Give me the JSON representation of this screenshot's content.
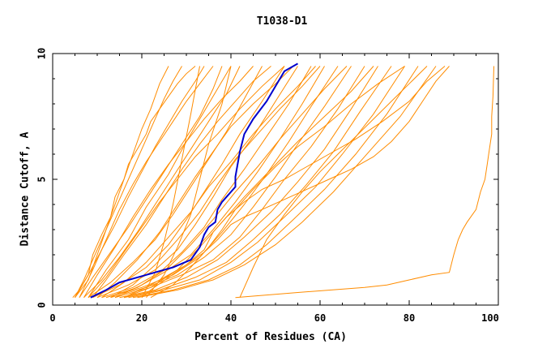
{
  "chart_data": {
    "type": "line",
    "title": "T1038-D1",
    "xlabel": "Percent of Residues (CA)",
    "ylabel": "Distance Cutoff, A",
    "xlim": [
      0,
      100
    ],
    "ylim": [
      0,
      10
    ],
    "x_ticks": [
      "0",
      "20",
      "40",
      "60",
      "80",
      "100"
    ],
    "y_ticks": [
      "0",
      "5",
      "10"
    ],
    "grid": false,
    "colors": {
      "models": "#ff8c00",
      "highlight": "#0000cd",
      "axes": "#000000"
    },
    "series": [
      {
        "x": [
          5,
          8,
          10,
          12,
          14,
          16,
          18,
          20,
          22,
          24,
          26
        ],
        "y": [
          0.3,
          1.0,
          2.0,
          3.0,
          4.0,
          5.0,
          6.0,
          7.0,
          7.8,
          8.8,
          9.5
        ]
      },
      {
        "x": [
          4.5,
          6,
          8,
          9,
          11,
          13,
          14,
          16,
          17,
          19,
          21,
          22,
          24,
          26,
          28,
          30,
          32
        ],
        "y": [
          0.3,
          0.6,
          1.2,
          2.0,
          2.8,
          3.5,
          4.3,
          5.0,
          5.6,
          6.2,
          6.8,
          7.3,
          7.8,
          8.3,
          8.8,
          9.2,
          9.5
        ]
      },
      {
        "x": [
          5,
          8,
          11,
          14,
          17,
          20,
          23,
          26,
          29,
          32,
          34
        ],
        "y": [
          0.3,
          1.2,
          2.2,
          3.2,
          4.3,
          5.3,
          6.3,
          7.2,
          8.1,
          8.9,
          9.5
        ]
      },
      {
        "x": [
          6,
          9,
          13,
          17,
          21,
          25,
          29,
          33,
          36,
          38
        ],
        "y": [
          0.3,
          1.1,
          2.1,
          3.1,
          4.2,
          5.3,
          6.4,
          7.5,
          8.6,
          9.5
        ]
      },
      {
        "x": [
          7,
          11,
          15,
          19,
          23,
          27,
          31,
          35,
          39,
          42
        ],
        "y": [
          0.3,
          1.0,
          1.9,
          2.9,
          4.0,
          5.1,
          6.2,
          7.3,
          8.4,
          9.5
        ]
      },
      {
        "x": [
          8,
          13,
          18,
          23,
          27,
          31,
          35,
          39,
          43,
          47
        ],
        "y": [
          0.3,
          0.9,
          1.7,
          2.6,
          3.6,
          4.7,
          5.8,
          6.9,
          8.2,
          9.5
        ]
      },
      {
        "x": [
          9,
          15,
          21,
          26,
          30,
          34,
          38,
          42,
          47,
          52
        ],
        "y": [
          0.3,
          0.8,
          1.5,
          2.4,
          3.4,
          4.5,
          5.6,
          6.8,
          8.1,
          9.5
        ]
      },
      {
        "x": [
          10,
          17,
          23,
          28,
          32,
          36,
          40,
          45,
          50,
          55
        ],
        "y": [
          0.3,
          0.8,
          1.4,
          2.2,
          3.2,
          4.3,
          5.5,
          6.7,
          8.1,
          9.5
        ]
      },
      {
        "x": [
          11,
          18,
          24,
          29,
          34,
          38,
          43,
          48,
          53,
          58
        ],
        "y": [
          0.3,
          0.7,
          1.3,
          2.1,
          3.1,
          4.2,
          5.4,
          6.7,
          8.0,
          9.5
        ]
      },
      {
        "x": [
          12,
          19,
          25,
          31,
          36,
          41,
          46,
          51,
          56,
          61
        ],
        "y": [
          0.3,
          0.7,
          1.3,
          2.0,
          3.0,
          4.1,
          5.3,
          6.6,
          8.0,
          9.5
        ]
      },
      {
        "x": [
          12,
          20,
          27,
          33,
          38,
          43,
          48,
          53,
          58,
          64
        ],
        "y": [
          0.3,
          0.7,
          1.2,
          1.9,
          2.9,
          4.0,
          5.2,
          6.5,
          7.9,
          9.5
        ]
      },
      {
        "x": [
          13,
          21,
          28,
          34,
          40,
          45,
          50,
          55,
          61,
          67
        ],
        "y": [
          0.3,
          0.7,
          1.2,
          1.9,
          2.8,
          3.9,
          5.1,
          6.4,
          7.9,
          9.5
        ]
      },
      {
        "x": [
          14,
          22,
          29,
          36,
          42,
          47,
          52,
          58,
          64,
          70
        ],
        "y": [
          0.3,
          0.7,
          1.2,
          1.8,
          2.7,
          3.8,
          5.0,
          6.3,
          7.8,
          9.5
        ]
      },
      {
        "x": [
          15,
          23,
          30,
          37,
          43,
          49,
          55,
          61,
          67,
          73
        ],
        "y": [
          0.3,
          0.6,
          1.1,
          1.8,
          2.7,
          3.7,
          4.9,
          6.2,
          7.8,
          9.5
        ]
      },
      {
        "x": [
          16,
          24,
          32,
          39,
          45,
          51,
          57,
          63,
          69,
          76
        ],
        "y": [
          0.3,
          0.6,
          1.1,
          1.7,
          2.6,
          3.6,
          4.8,
          6.1,
          7.7,
          9.5
        ]
      },
      {
        "x": [
          17,
          25,
          33,
          40,
          46,
          52,
          59,
          65,
          72,
          79
        ],
        "y": [
          0.3,
          0.6,
          1.0,
          1.7,
          2.5,
          3.5,
          4.7,
          6.0,
          7.6,
          9.5
        ]
      },
      {
        "x": [
          18,
          27,
          35,
          42,
          48,
          54,
          61,
          68,
          75,
          82
        ],
        "y": [
          0.3,
          0.6,
          1.0,
          1.6,
          2.4,
          3.4,
          4.6,
          6.0,
          7.6,
          9.5
        ]
      },
      {
        "x": [
          19,
          28,
          36,
          43,
          50,
          56,
          63,
          70,
          78,
          86
        ],
        "y": [
          0.3,
          0.6,
          1.0,
          1.6,
          2.4,
          3.3,
          4.5,
          5.9,
          7.5,
          9.5
        ]
      },
      {
        "x": [
          6,
          9,
          12,
          15,
          18,
          21,
          24,
          27,
          30,
          33,
          36
        ],
        "y": [
          0.3,
          1.4,
          2.6,
          3.8,
          4.8,
          5.7,
          6.5,
          7.3,
          8.1,
          8.8,
          9.5
        ]
      },
      {
        "x": [
          7,
          10,
          14,
          18,
          22,
          26,
          30,
          34,
          38,
          42,
          45
        ],
        "y": [
          0.3,
          1.2,
          2.3,
          3.5,
          4.6,
          5.6,
          6.5,
          7.4,
          8.2,
          8.9,
          9.5
        ]
      },
      {
        "x": [
          9,
          12,
          16,
          21,
          25,
          29,
          33,
          37,
          41,
          45,
          49
        ],
        "y": [
          0.3,
          1.0,
          2.0,
          3.2,
          4.3,
          5.4,
          6.4,
          7.3,
          8.1,
          8.9,
          9.5
        ]
      },
      {
        "x": [
          10,
          14,
          19,
          24,
          28,
          32,
          36,
          40,
          45,
          50,
          54
        ],
        "y": [
          0.3,
          0.9,
          1.8,
          2.9,
          4.0,
          5.1,
          6.1,
          7.1,
          8.0,
          8.8,
          9.5
        ]
      },
      {
        "x": [
          13,
          18,
          23,
          28,
          33,
          37,
          41,
          46,
          51,
          56,
          60
        ],
        "y": [
          0.3,
          0.8,
          1.6,
          2.6,
          3.7,
          4.8,
          5.8,
          6.8,
          7.8,
          8.7,
          9.5
        ]
      },
      {
        "x": [
          14,
          20,
          26,
          31,
          36,
          41,
          46,
          51,
          56,
          61,
          66
        ],
        "y": [
          0.3,
          0.8,
          1.5,
          2.4,
          3.4,
          4.5,
          5.5,
          6.6,
          7.6,
          8.6,
          9.5
        ]
      },
      {
        "x": [
          16,
          22,
          28,
          33,
          38,
          43,
          49,
          55,
          61,
          67,
          72
        ],
        "y": [
          0.3,
          0.7,
          1.4,
          2.3,
          3.3,
          4.3,
          5.4,
          6.5,
          7.5,
          8.5,
          9.5
        ]
      },
      {
        "x": [
          22,
          27,
          31,
          35,
          38,
          41,
          45,
          50,
          55,
          61,
          67,
          73,
          79
        ],
        "y": [
          0.3,
          0.8,
          1.5,
          2.3,
          3.0,
          3.8,
          4.6,
          5.5,
          6.3,
          7.1,
          8.0,
          8.8,
          9.5
        ]
      },
      {
        "x": [
          8,
          12,
          16,
          20,
          24,
          28,
          32,
          37,
          42,
          47,
          52
        ],
        "y": [
          0.3,
          1.1,
          2.1,
          3.1,
          4.1,
          5.0,
          5.9,
          6.8,
          7.8,
          8.7,
          9.5
        ]
      },
      {
        "x": [
          11,
          16,
          21,
          26,
          31,
          35,
          40,
          45,
          50,
          55,
          59
        ],
        "y": [
          0.3,
          0.9,
          1.7,
          2.7,
          3.7,
          4.7,
          5.7,
          6.8,
          7.8,
          8.7,
          9.5
        ]
      },
      {
        "x": [
          5,
          7,
          9,
          11,
          13,
          15,
          17,
          19,
          21,
          23,
          25,
          27,
          29
        ],
        "y": [
          0.3,
          1.0,
          1.8,
          2.6,
          3.4,
          4.2,
          5.0,
          5.8,
          6.6,
          7.4,
          8.2,
          8.9,
          9.5
        ]
      },
      {
        "x": [
          20,
          23,
          25,
          27,
          29,
          31,
          33
        ],
        "y": [
          0.3,
          1.3,
          2.5,
          4.0,
          5.8,
          7.6,
          9.5
        ]
      },
      {
        "x": [
          21,
          25,
          28,
          31,
          33,
          35,
          38,
          40
        ],
        "y": [
          0.3,
          1.2,
          2.3,
          3.6,
          5.0,
          6.4,
          8.0,
          9.5
        ]
      },
      {
        "x": [
          8,
          12,
          17,
          21,
          26,
          30,
          35,
          40
        ],
        "y": [
          0.3,
          1.4,
          2.6,
          3.9,
          5.2,
          6.5,
          8.0,
          9.5
        ]
      },
      {
        "x": [
          20,
          22,
          26,
          30,
          34,
          36,
          39,
          43,
          47,
          52,
          57,
          62,
          68,
          74,
          80,
          84,
          88
        ],
        "y": [
          0.3,
          0.6,
          1.1,
          1.6,
          2.2,
          2.9,
          3.5,
          4.1,
          4.6,
          5.0,
          5.5,
          6.0,
          6.6,
          7.3,
          8.1,
          8.9,
          9.5
        ]
      },
      {
        "x": [
          42,
          45,
          48,
          52,
          56,
          60,
          64,
          68,
          72,
          76,
          80,
          84
        ],
        "y": [
          0.3,
          1.5,
          2.6,
          3.6,
          4.5,
          5.3,
          6.0,
          6.7,
          7.4,
          8.1,
          8.8,
          9.5
        ]
      },
      {
        "x": [
          41,
          55,
          70,
          75,
          80,
          85,
          89,
          90,
          91,
          92,
          93,
          95,
          96,
          97,
          97.5,
          98,
          98.5,
          98.5,
          98.8,
          99
        ],
        "y": [
          0.3,
          0.5,
          0.7,
          0.8,
          1.0,
          1.2,
          1.3,
          2.0,
          2.6,
          3.0,
          3.3,
          3.8,
          4.5,
          5.0,
          5.6,
          6.2,
          6.8,
          7.5,
          8.3,
          9.5
        ]
      },
      {
        "x": [
          16,
          22,
          26,
          30,
          34,
          37,
          39,
          40,
          43,
          47,
          52,
          57,
          62,
          67,
          72,
          76,
          80,
          83,
          86,
          89
        ],
        "y": [
          0.3,
          0.8,
          1.2,
          1.6,
          2.1,
          2.6,
          3.0,
          3.2,
          3.5,
          3.8,
          4.2,
          4.6,
          5.0,
          5.4,
          5.9,
          6.5,
          7.3,
          8.1,
          8.9,
          9.5
        ]
      }
    ],
    "highlight_series": {
      "x": [
        8.5,
        12,
        15,
        19,
        23,
        27,
        31,
        33,
        34,
        35,
        36.5,
        37,
        38,
        39.5,
        41,
        41,
        42,
        43,
        45,
        48,
        50,
        52,
        55
      ],
      "y": [
        0.3,
        0.6,
        0.9,
        1.1,
        1.3,
        1.5,
        1.8,
        2.3,
        2.8,
        3.1,
        3.3,
        3.8,
        4.1,
        4.4,
        4.7,
        5.1,
        6.1,
        6.8,
        7.4,
        8.1,
        8.7,
        9.3,
        9.6
      ]
    }
  }
}
